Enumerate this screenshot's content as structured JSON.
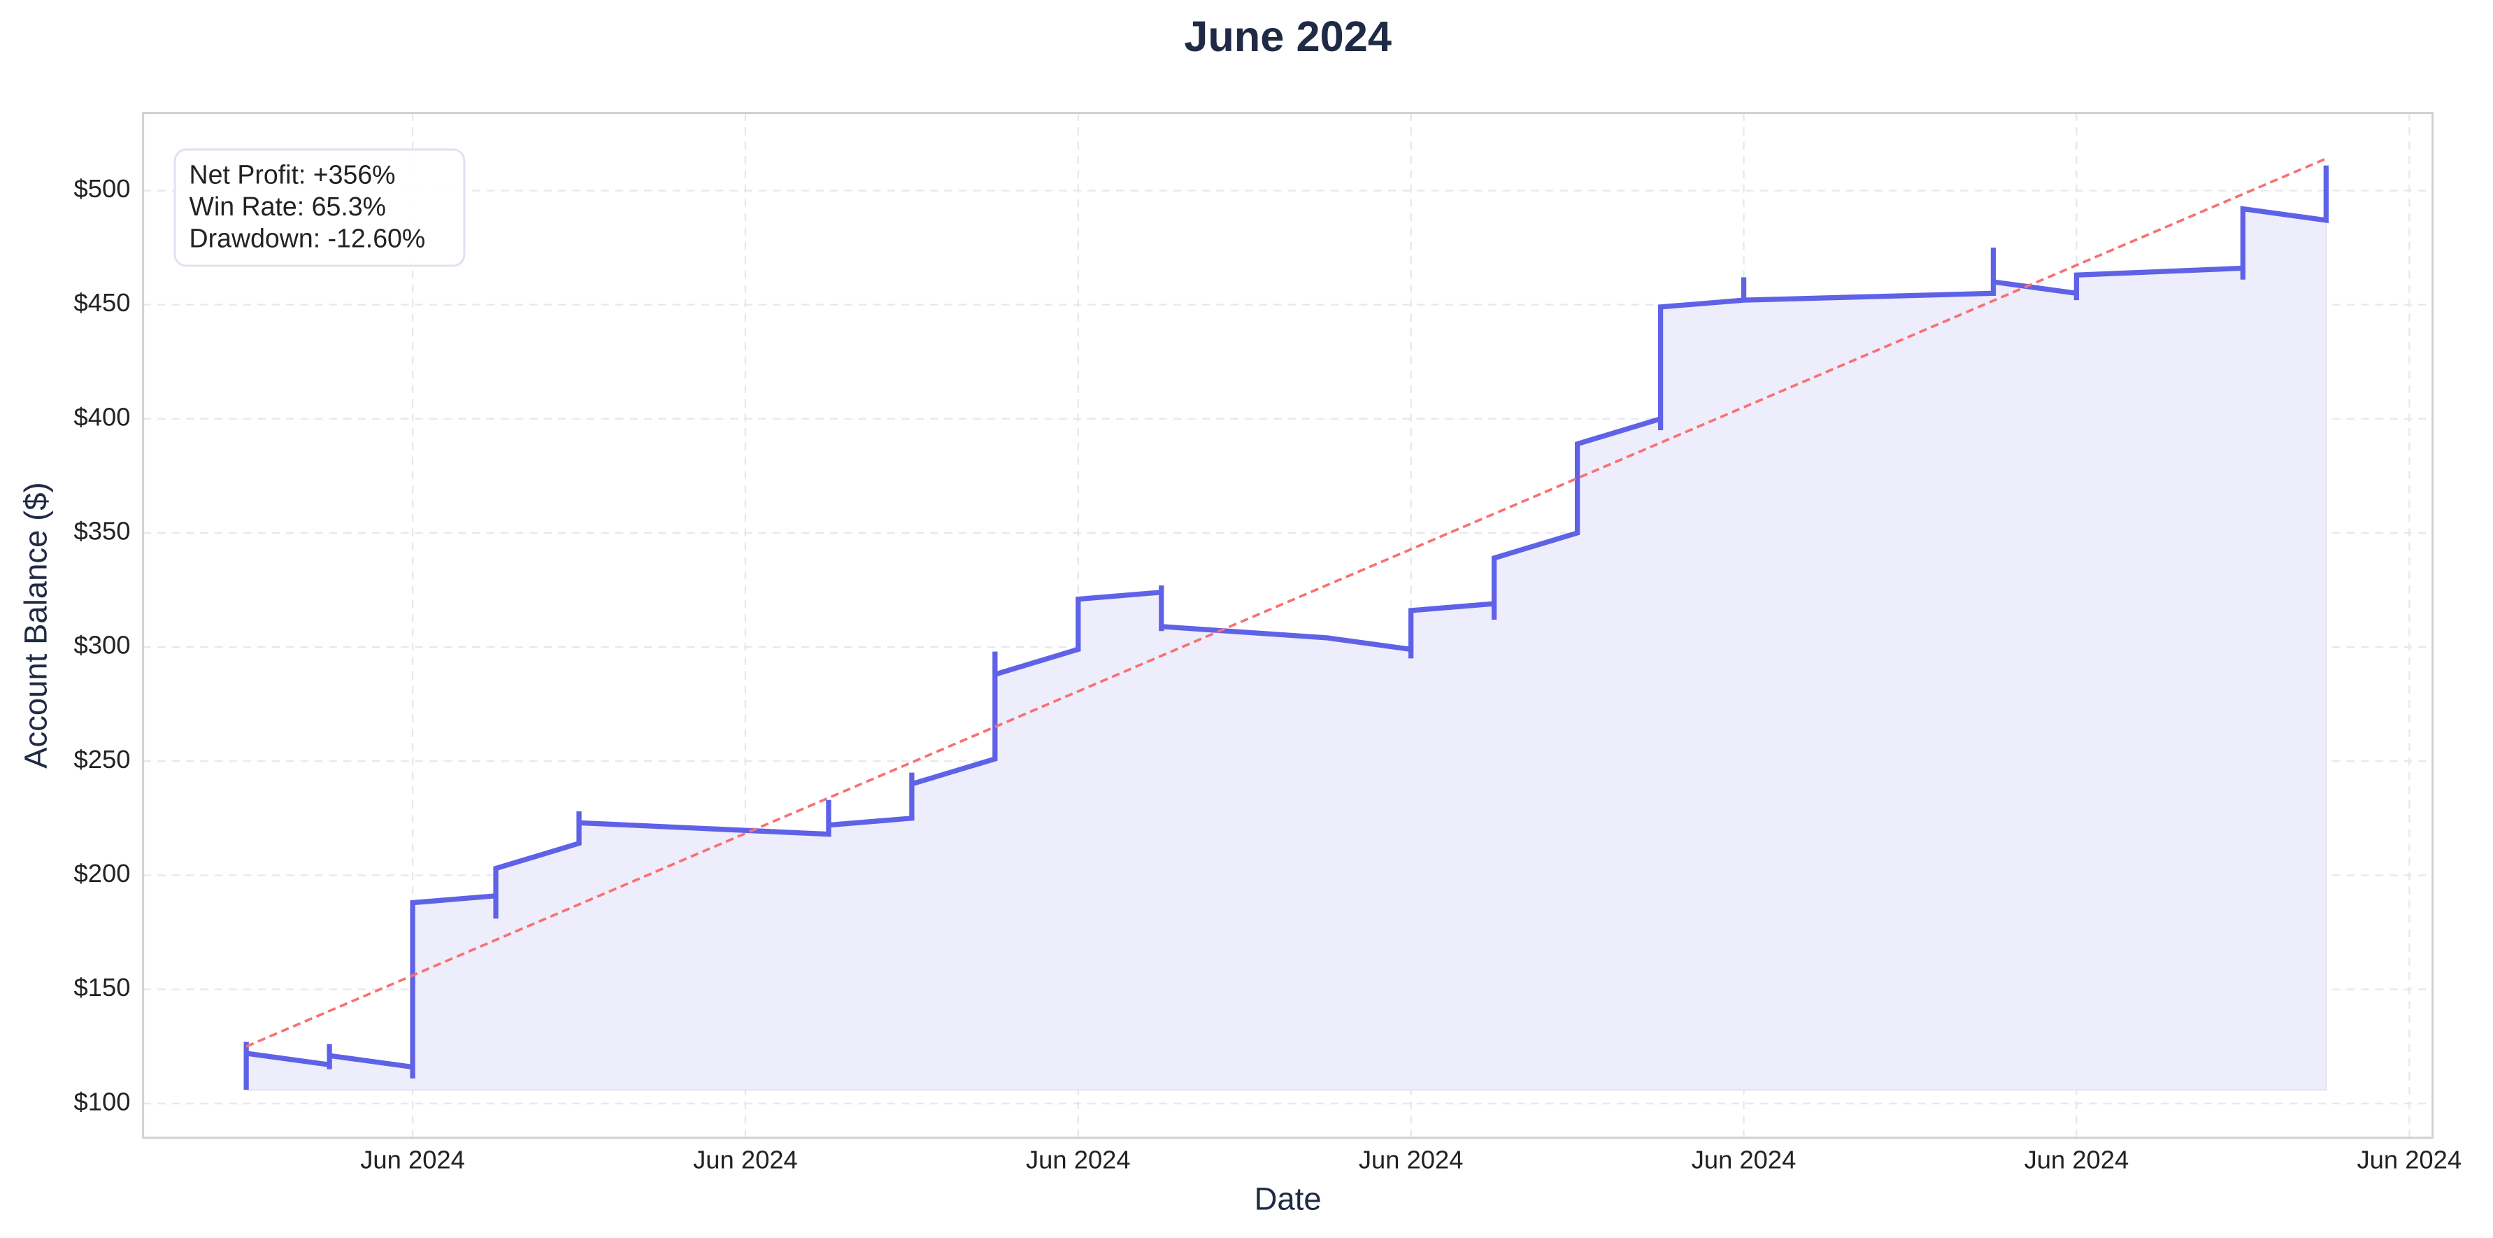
{
  "chart_data": {
    "type": "line",
    "title": "June 2024",
    "x_label": "Date",
    "y_label": "Account Balance ($)",
    "annotations": [
      "Net Profit: +356%",
      "Win Rate: 65.3%",
      "Drawdown: -12.60%"
    ],
    "xlim": [
      0.19,
      7.07
    ],
    "ylim": [
      85,
      534
    ],
    "xticks": [
      {
        "value": 1,
        "label": "Jun 2024"
      },
      {
        "value": 2,
        "label": "Jun 2024"
      },
      {
        "value": 3,
        "label": "Jun 2024"
      },
      {
        "value": 4,
        "label": "Jun 2024"
      },
      {
        "value": 5,
        "label": "Jun 2024"
      },
      {
        "value": 6,
        "label": "Jun 2024"
      },
      {
        "value": 7,
        "label": "Jun 2024"
      }
    ],
    "yticks": [
      {
        "value": 100,
        "label": "$100"
      },
      {
        "value": 150,
        "label": "$150"
      },
      {
        "value": 200,
        "label": "$200"
      },
      {
        "value": 250,
        "label": "$250"
      },
      {
        "value": 300,
        "label": "$300"
      },
      {
        "value": 350,
        "label": "$350"
      },
      {
        "value": 400,
        "label": "$400"
      },
      {
        "value": 450,
        "label": "$450"
      },
      {
        "value": 500,
        "label": "$500"
      }
    ],
    "grid": true,
    "series": [
      {
        "color": "#5f62e6",
        "fill": "#eeedfc",
        "x": [
          0.5,
          0.5,
          0.5,
          0.75,
          0.75,
          0.75,
          0.75,
          1,
          1,
          1,
          1.25,
          1.25,
          1.25,
          1.5,
          1.5,
          1.5,
          2.25,
          2.25,
          2.25,
          2.5,
          2.5,
          2.5,
          2.75,
          2.75,
          2.75,
          3,
          3,
          3.25,
          3.25,
          3.25,
          3.25,
          3.75,
          4,
          4,
          4,
          4.25,
          4.25,
          4.25,
          4.5,
          4.5,
          4.75,
          4.75,
          4.75,
          5,
          5,
          5,
          5.75,
          5.75,
          5.75,
          6,
          6,
          6,
          6.5,
          6.5,
          6.5,
          6.75,
          6.75
        ],
        "values": [
          106,
          127,
          122,
          117,
          115,
          126,
          121,
          116,
          111,
          188,
          191,
          181,
          203,
          214,
          228,
          223,
          218,
          233,
          222,
          225,
          245,
          240,
          251,
          298,
          288,
          299,
          321,
          324,
          327,
          307,
          309,
          304,
          299,
          295,
          316,
          319,
          312,
          339,
          350,
          389,
          400,
          395,
          449,
          452,
          462,
          452,
          455,
          475,
          460,
          455,
          452,
          463,
          466,
          461,
          492,
          487,
          511
        ]
      }
    ],
    "trend_line": {
      "color": "#f87171",
      "x": [
        0.5,
        6.75
      ],
      "values": [
        125,
        514
      ]
    }
  }
}
